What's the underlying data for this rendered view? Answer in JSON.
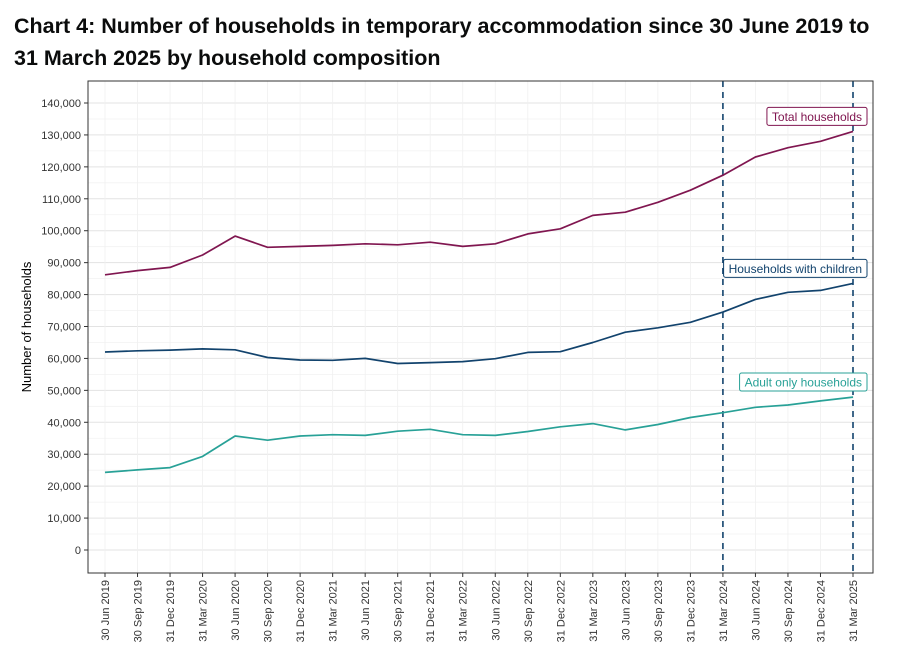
{
  "chart_data": {
    "type": "line",
    "title": "Chart 4: Number of households in temporary accommodation since 30 June 2019 to 31 March 2025 by household composition",
    "xlabel": "",
    "ylabel": "Number of households",
    "ylim": [
      0,
      140000
    ],
    "yticks": [
      0,
      10000,
      20000,
      30000,
      40000,
      50000,
      60000,
      70000,
      80000,
      90000,
      100000,
      110000,
      120000,
      130000,
      140000
    ],
    "ytick_labels": [
      "0",
      "10,000",
      "20,000",
      "30,000",
      "40,000",
      "50,000",
      "60,000",
      "70,000",
      "80,000",
      "90,000",
      "100,000",
      "110,000",
      "120,000",
      "130,000",
      "140,000"
    ],
    "categories": [
      "30 Jun 2019",
      "30 Sep 2019",
      "31 Dec 2019",
      "31 Mar 2020",
      "30 Jun 2020",
      "30 Sep 2020",
      "31 Dec 2020",
      "31 Mar 2021",
      "30 Jun 2021",
      "30 Sep 2021",
      "31 Dec 2021",
      "31 Mar 2022",
      "30 Jun 2022",
      "30 Sep 2022",
      "31 Dec 2022",
      "31 Mar 2023",
      "30 Jun 2023",
      "30 Sep 2023",
      "31 Dec 2023",
      "31 Mar 2024",
      "30 Jun 2024",
      "30 Sep 2024",
      "31 Dec 2024",
      "31 Mar 2025"
    ],
    "series": [
      {
        "name": "Total households",
        "color": "#801650",
        "values": [
          86200,
          87500,
          88500,
          92400,
          98300,
          94800,
          95100,
          95400,
          95900,
          95600,
          96400,
          95100,
          95900,
          99000,
          100600,
          104800,
          105800,
          108900,
          112700,
          117400,
          123100,
          126000,
          128000,
          131100
        ]
      },
      {
        "name": "Households with children",
        "color": "#12436d",
        "values": [
          62000,
          62400,
          62600,
          63000,
          62700,
          60300,
          59500,
          59400,
          60000,
          58400,
          58700,
          59000,
          59900,
          61900,
          62100,
          65000,
          68200,
          69600,
          71300,
          74500,
          78500,
          80700,
          81300,
          83500
        ]
      },
      {
        "name": "Adult only households",
        "color": "#28a197",
        "values": [
          24300,
          25100,
          25800,
          29300,
          35700,
          34400,
          35700,
          36100,
          35900,
          37200,
          37800,
          36100,
          35900,
          37100,
          38600,
          39600,
          37600,
          39300,
          41500,
          43000,
          44700,
          45400,
          46700,
          47900
        ]
      }
    ],
    "vertical_reference_lines": [
      "31 Mar 2024",
      "31 Mar 2025"
    ],
    "reference_line_color": "#12436d",
    "grid": true,
    "legend": "direct labels at right"
  }
}
